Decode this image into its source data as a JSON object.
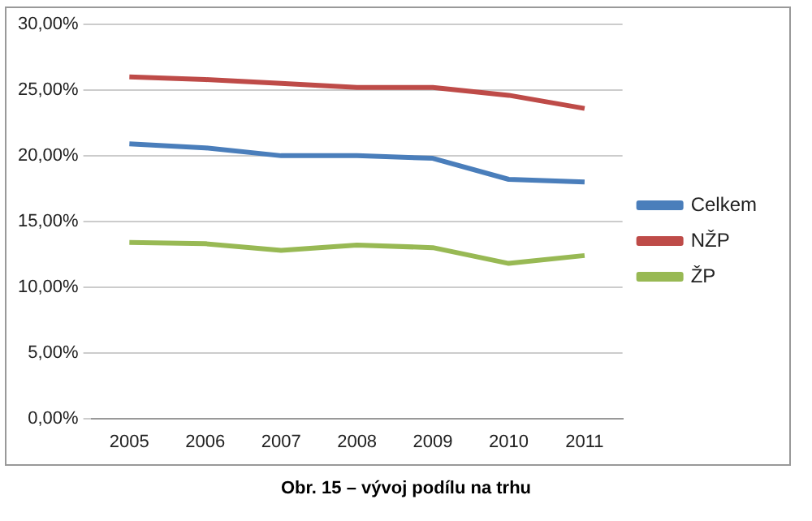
{
  "chart_data": {
    "type": "line",
    "categories": [
      "2005",
      "2006",
      "2007",
      "2008",
      "2009",
      "2010",
      "2011"
    ],
    "series": [
      {
        "name": "Celkem",
        "color": "#4a7ebb",
        "values": [
          20.9,
          20.6,
          20.0,
          20.0,
          19.8,
          18.2,
          18.0
        ]
      },
      {
        "name": "NŽP",
        "color": "#be4b48",
        "values": [
          26.0,
          25.8,
          25.5,
          25.2,
          25.2,
          24.6,
          23.6
        ]
      },
      {
        "name": "ŽP",
        "color": "#98b954",
        "values": [
          13.4,
          13.3,
          12.8,
          13.2,
          13.0,
          11.8,
          12.4
        ]
      }
    ],
    "ylim": [
      0,
      30
    ],
    "yticks": [
      {
        "value": 0,
        "label": "0,00%"
      },
      {
        "value": 5,
        "label": "5,00%"
      },
      {
        "value": 10,
        "label": "10,00%"
      },
      {
        "value": 15,
        "label": "15,00%"
      },
      {
        "value": 20,
        "label": "20,00%"
      },
      {
        "value": 25,
        "label": "25,00%"
      },
      {
        "value": 30,
        "label": "30,00%"
      }
    ],
    "grid": "y",
    "legend": "right",
    "marker": "none",
    "line_style": "solid",
    "annotations": [
      "Obr. 15 – vývoj podílu na trhu"
    ]
  }
}
